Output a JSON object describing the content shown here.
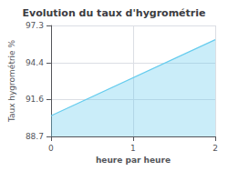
{
  "chart_data": {
    "type": "area",
    "title": "Evolution du taux d'hygrométrie",
    "xlabel": "heure par heure",
    "ylabel": "Taux hygrométrie %",
    "x": [
      0,
      2
    ],
    "values": [
      90.3,
      96.2
    ],
    "color": "#66ccee",
    "xlim": [
      0,
      2
    ],
    "xticks": [
      0,
      1,
      2
    ],
    "ylim": [
      88.7,
      97.3
    ],
    "yticks": [
      88.7,
      91.6,
      94.4,
      97.3
    ],
    "grid": true
  }
}
